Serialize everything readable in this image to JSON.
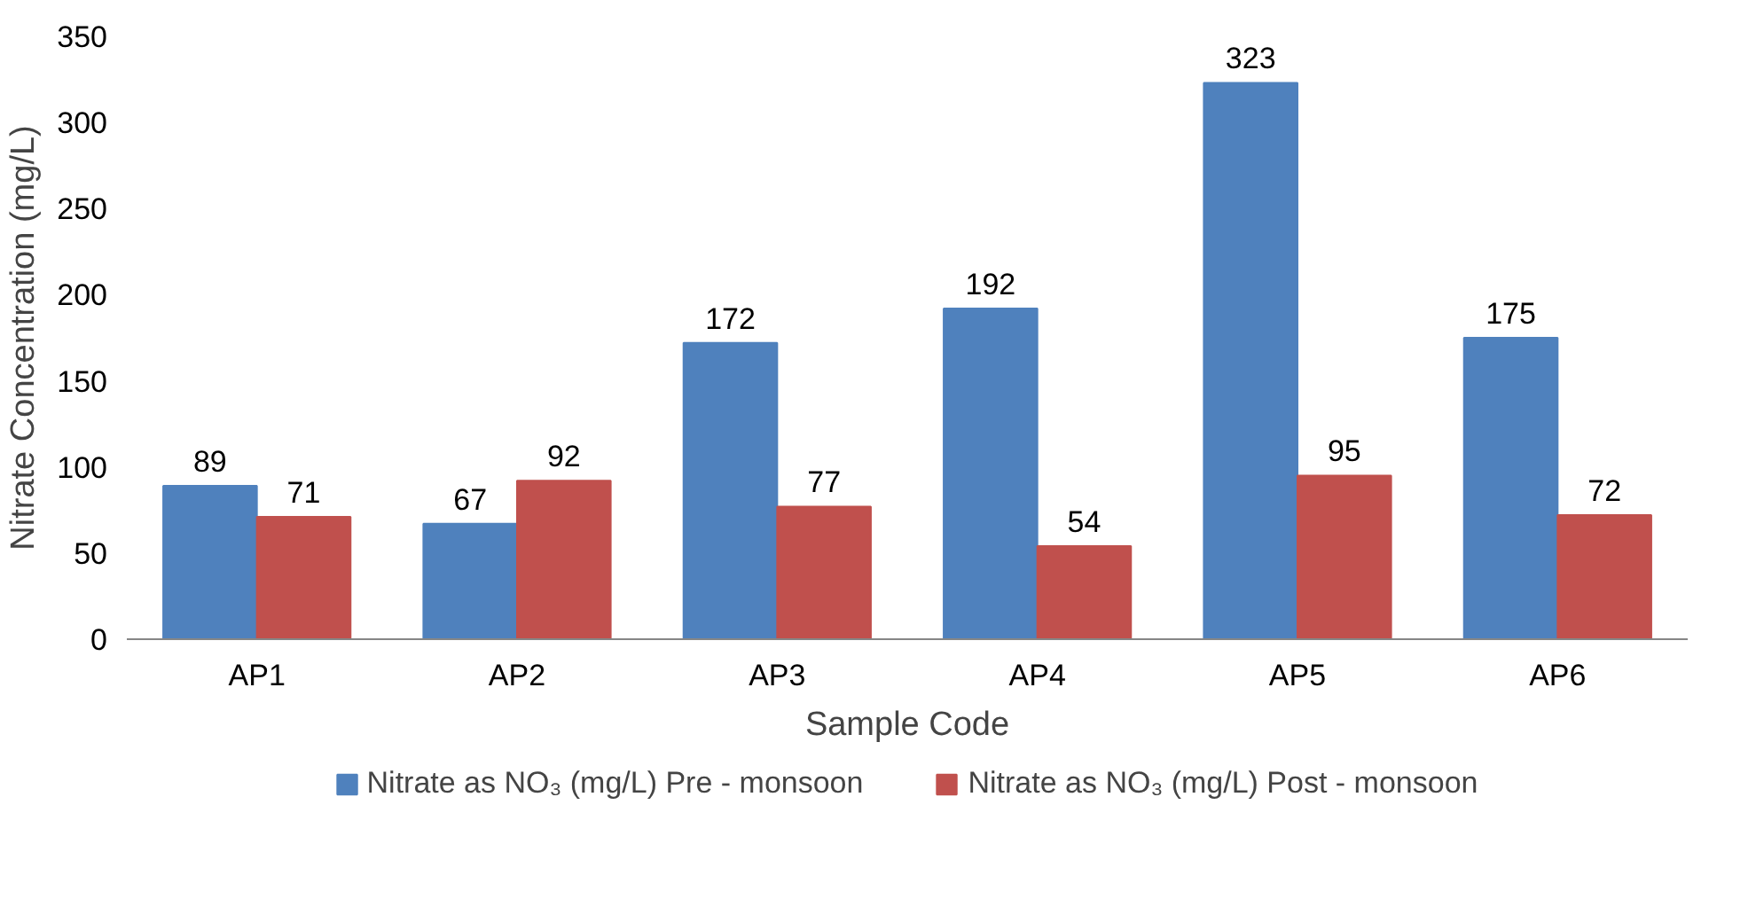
{
  "chart_data": {
    "type": "bar",
    "xlabel": "Sample Code",
    "ylabel": "Nitrate Concentration (mg/L)",
    "categories": [
      "AP1",
      "AP2",
      "AP3",
      "AP4",
      "AP5",
      "AP6"
    ],
    "series": [
      {
        "name": "Nitrate as NO₃ (mg/L) Pre - monsoon",
        "color": "#4f81bd",
        "values": [
          89,
          67,
          172,
          192,
          323,
          175
        ]
      },
      {
        "name": "Nitrate as NO₃ (mg/L) Post - monsoon",
        "color": "#c0504d",
        "values": [
          71,
          92,
          77,
          54,
          95,
          72
        ]
      }
    ],
    "ylim": [
      0,
      350
    ],
    "yticks": [
      0,
      50,
      100,
      150,
      200,
      250,
      300,
      350
    ],
    "data_labels": true,
    "legend": "bottom"
  }
}
